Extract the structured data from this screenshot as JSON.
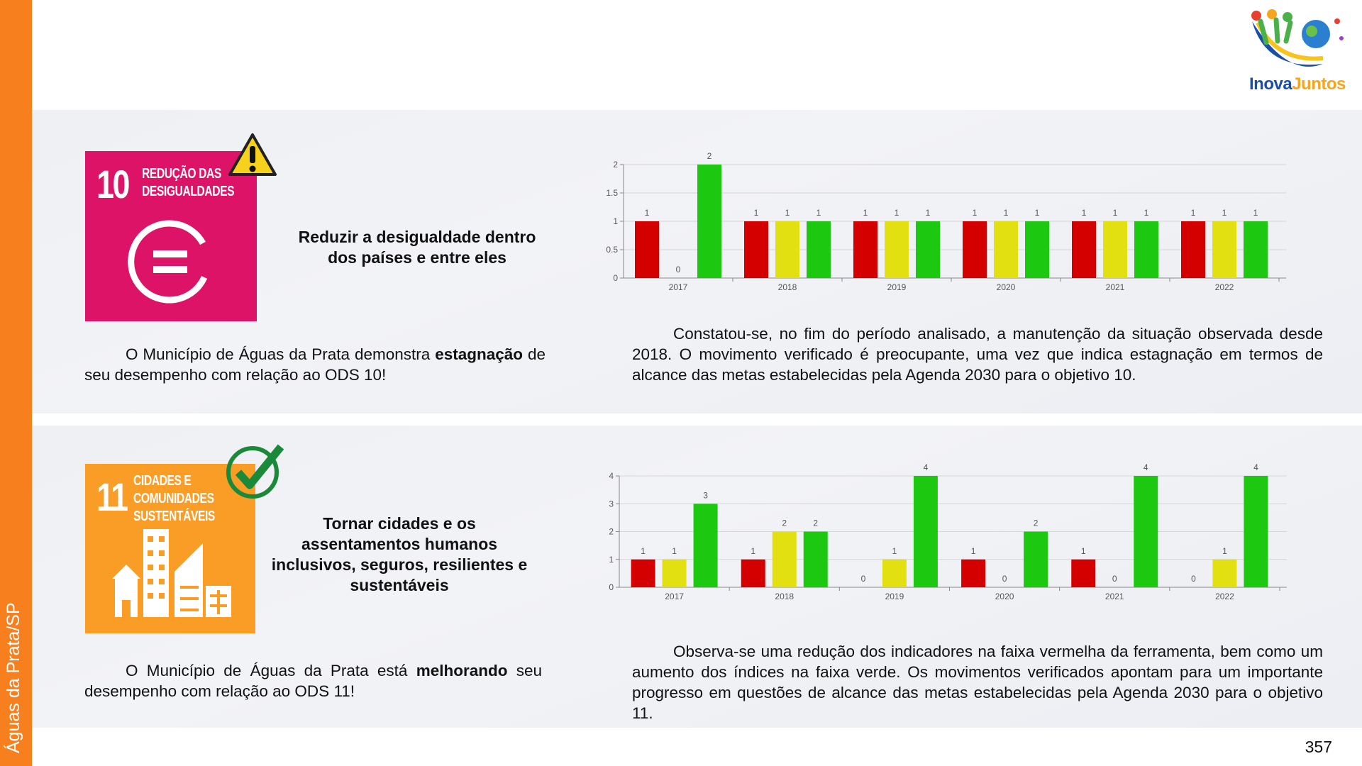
{
  "side_label": "Águas da Prata/SP",
  "logo": {
    "inova": "Inova",
    "juntos": "Juntos"
  },
  "page_number": "357",
  "sections": [
    {
      "badge_number": "10",
      "badge_title_lines": [
        "REDUÇÃO DAS",
        "DESIGUALDADES"
      ],
      "heading": "Reduzir a desigualdade dentro dos países e entre eles",
      "summary": [
        "O Município de Águas da Prata demonstra ",
        "estagnação",
        " de seu desempenho com relação ao ODS 10!"
      ],
      "analysis": "Constatou-se, no fim do período analisado, a manutenção da situação observada desde 2018. O movimento verificado é preocupante, uma vez que indica estagnação em termos de alcance das metas estabelecidas pela Agenda 2030 para o objetivo 10."
    },
    {
      "badge_number": "11",
      "badge_title_lines": [
        "CIDADES E",
        "COMUNIDADES",
        "SUSTENTÁVEIS"
      ],
      "heading": "Tornar cidades e os assentamentos humanos inclusivos, seguros, resilientes e sustentáveis",
      "summary": [
        "O Município de Águas da Prata está ",
        "melhorando",
        " seu desempenho com relação ao ODS 11!"
      ],
      "analysis": "Observa-se uma redução dos indicadores na faixa vermelha da ferramenta, bem como um aumento dos índices na faixa verde. Os movimentos verificados apontam para um importante progresso em questões de alcance das metas estabelecidas pela Agenda 2030 para o objetivo 11."
    }
  ],
  "chart_data": [
    {
      "type": "bar",
      "categories": [
        "2017",
        "2018",
        "2019",
        "2020",
        "2021",
        "2022"
      ],
      "series": [
        {
          "color": "#d40000",
          "values": [
            1,
            1,
            1,
            1,
            1,
            1
          ]
        },
        {
          "color": "#e2e010",
          "values": [
            0,
            1,
            1,
            1,
            1,
            1
          ]
        },
        {
          "color": "#1cc910",
          "values": [
            2,
            1,
            1,
            1,
            1,
            1
          ]
        }
      ],
      "ylim": [
        0,
        2
      ],
      "yticks": [
        0,
        0.5,
        1,
        1.5,
        2
      ],
      "grid": true
    },
    {
      "type": "bar",
      "categories": [
        "2017",
        "2018",
        "2019",
        "2020",
        "2021",
        "2022"
      ],
      "series": [
        {
          "color": "#d40000",
          "values": [
            1,
            1,
            0,
            1,
            1,
            0
          ]
        },
        {
          "color": "#e2e010",
          "values": [
            1,
            2,
            1,
            0,
            0,
            1
          ]
        },
        {
          "color": "#1cc910",
          "values": [
            3,
            2,
            4,
            2,
            4,
            4
          ]
        }
      ],
      "ylim": [
        0,
        4
      ],
      "yticks": [
        0,
        1,
        2,
        3,
        4
      ],
      "grid": true
    }
  ]
}
